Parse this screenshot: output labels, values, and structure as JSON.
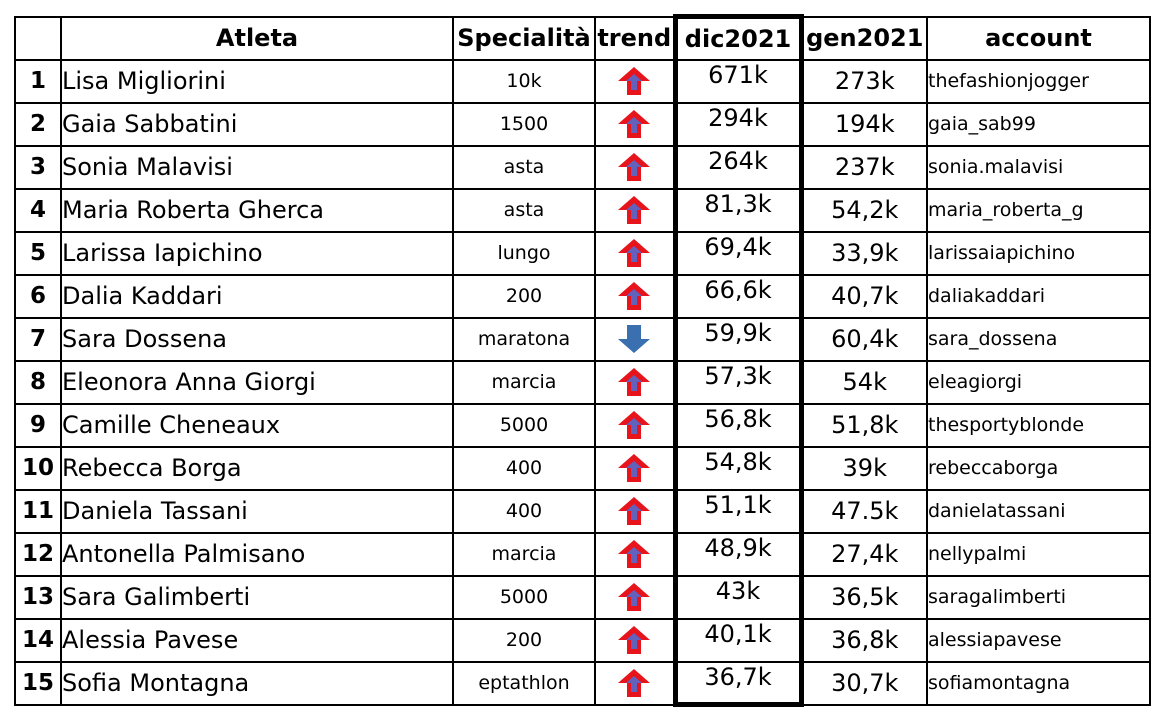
{
  "headers": {
    "rank": "",
    "atleta": "Atleta",
    "specialita": "Specialità",
    "trend": "trend",
    "dic": "dic2021",
    "gen": "gen2021",
    "account": "account"
  },
  "colors": {
    "arrow_up": "#e8141c",
    "arrow_up_inner": "#4a6fd8",
    "arrow_down": "#3a6fb0"
  },
  "rows": [
    {
      "rank": "1",
      "name": "Lisa Migliorini",
      "spec": "10k",
      "trend": "up-arrow-icon",
      "dic": "671k",
      "gen": "273k",
      "account": "thefashionjogger"
    },
    {
      "rank": "2",
      "name": "Gaia Sabbatini",
      "spec": "1500",
      "trend": "up-arrow-icon",
      "dic": "294k",
      "gen": "194k",
      "account": "gaia_sab99"
    },
    {
      "rank": "3",
      "name": "Sonia Malavisi",
      "spec": "asta",
      "trend": "up-arrow-icon",
      "dic": "264k",
      "gen": "237k",
      "account": "sonia.malavisi"
    },
    {
      "rank": "4",
      "name": "Maria Roberta Gherca",
      "spec": "asta",
      "trend": "up-arrow-icon",
      "dic": "81,3k",
      "gen": "54,2k",
      "account": "maria_roberta_g"
    },
    {
      "rank": "5",
      "name": "Larissa Iapichino",
      "spec": "lungo",
      "trend": "up-arrow-icon",
      "dic": "69,4k",
      "gen": "33,9k",
      "account": "larissaiapichino"
    },
    {
      "rank": "6",
      "name": "Dalia Kaddari",
      "spec": "200",
      "trend": "up-arrow-icon",
      "dic": "66,6k",
      "gen": "40,7k",
      "account": "daliakaddari"
    },
    {
      "rank": "7",
      "name": "Sara Dossena",
      "spec": "maratona",
      "trend": "down-arrow-icon",
      "dic": "59,9k",
      "gen": "60,4k",
      "account": "sara_dossena"
    },
    {
      "rank": "8",
      "name": "Eleonora Anna Giorgi",
      "spec": "marcia",
      "trend": "up-arrow-icon",
      "dic": "57,3k",
      "gen": "54k",
      "account": "eleagiorgi"
    },
    {
      "rank": "9",
      "name": "Camille Cheneaux",
      "spec": "5000",
      "trend": "up-arrow-icon",
      "dic": "56,8k",
      "gen": "51,8k",
      "account": "thesportyblonde"
    },
    {
      "rank": "10",
      "name": "Rebecca Borga",
      "spec": "400",
      "trend": "up-arrow-icon",
      "dic": "54,8k",
      "gen": "39k",
      "account": "rebeccaborga"
    },
    {
      "rank": "11",
      "name": "Daniela Tassani",
      "spec": "400",
      "trend": "up-arrow-icon",
      "dic": "51,1k",
      "gen": "47.5k",
      "account": "danielatassani"
    },
    {
      "rank": "12",
      "name": "Antonella Palmisano",
      "spec": "marcia",
      "trend": "up-arrow-icon",
      "dic": "48,9k",
      "gen": "27,4k",
      "account": "nellypalmi"
    },
    {
      "rank": "13",
      "name": "Sara Galimberti",
      "spec": "5000",
      "trend": "up-arrow-icon",
      "dic": "43k",
      "gen": "36,5k",
      "account": "saragalimberti"
    },
    {
      "rank": "14",
      "name": "Alessia Pavese",
      "spec": "200",
      "trend": "up-arrow-icon",
      "dic": "40,1k",
      "gen": "36,8k",
      "account": "alessiapavese"
    },
    {
      "rank": "15",
      "name": "Sofia Montagna",
      "spec": "eptathlon",
      "trend": "up-arrow-icon",
      "dic": "36,7k",
      "gen": "30,7k",
      "account": "sofiamontagna"
    }
  ]
}
